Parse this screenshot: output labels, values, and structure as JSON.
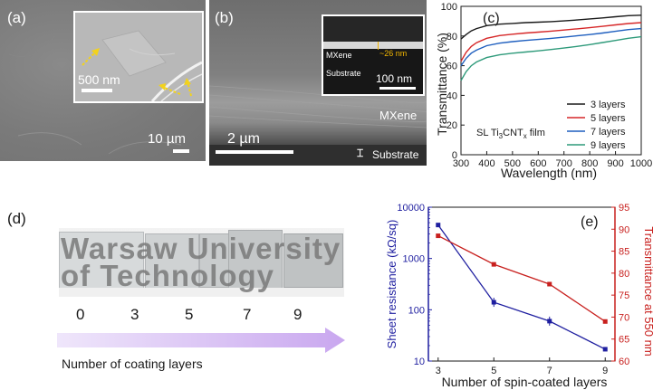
{
  "panel_a": {
    "label": "(a)",
    "inset_scale": "500 nm",
    "main_scale": "10 µm"
  },
  "panel_b": {
    "label": "(b)",
    "inset_layer_top": "MXene",
    "inset_layer_bottom": "Substrate",
    "inset_thickness": "~26 nm",
    "inset_scale": "100 nm",
    "mxene_label": "MXene",
    "substrate_label": "Substrate",
    "main_scale": "2 µm",
    "accent_color": "#f2b600"
  },
  "panel_c": {
    "label": "(c)",
    "annotation": "SL Ti3CNTx film",
    "annotation_parts": {
      "pre": "SL Ti",
      "sub1": "3",
      "mid": "CNT",
      "sub2": "x",
      "post": " film"
    },
    "chart_data": {
      "type": "line",
      "title": "",
      "xlabel": "Wavelength (nm)",
      "ylabel": "Transmittance (%)",
      "xlim": [
        300,
        1000
      ],
      "ylim": [
        0,
        100
      ],
      "xticks": [
        300,
        400,
        500,
        600,
        700,
        800,
        900,
        1000
      ],
      "yticks": [
        0,
        20,
        40,
        60,
        80,
        100
      ],
      "legend_position": "lower-right",
      "x": [
        300,
        320,
        340,
        360,
        400,
        450,
        500,
        550,
        600,
        650,
        700,
        750,
        800,
        850,
        900,
        950,
        1000
      ],
      "series": [
        {
          "name": "3 layers",
          "color": "#1a1a1a",
          "values": [
            78,
            81,
            83.5,
            85,
            87,
            88,
            88.5,
            89,
            89.3,
            89.7,
            90.2,
            90.8,
            91.5,
            92.2,
            93,
            93.7,
            94
          ]
        },
        {
          "name": "5 layers",
          "color": "#d62728",
          "values": [
            63,
            69,
            73,
            75.5,
            78.5,
            80.3,
            81.2,
            82,
            82.6,
            83.3,
            84,
            84.8,
            85.6,
            86.5,
            87.5,
            88.4,
            89
          ]
        },
        {
          "name": "7 layers",
          "color": "#1f5fbf",
          "values": [
            60,
            65,
            68.5,
            70.5,
            73.5,
            75.2,
            76.2,
            77,
            77.7,
            78.4,
            79.2,
            80.1,
            81,
            82,
            83.2,
            84.3,
            85
          ]
        },
        {
          "name": "9 layers",
          "color": "#2e9a7a",
          "values": [
            50,
            56,
            60,
            62.5,
            65.5,
            67.3,
            68.4,
            69.2,
            70,
            70.9,
            71.9,
            73,
            74.2,
            75.6,
            77,
            78.5,
            79.5
          ]
        }
      ]
    }
  },
  "panel_d": {
    "label": "(d)",
    "photo_text_line1": "Warsaw University",
    "photo_text_line2": "of Technology",
    "layer_counts": [
      "0",
      "3",
      "5",
      "7",
      "9"
    ],
    "arrow_caption": "Number of coating layers",
    "arrow_color": "#c9a7ef"
  },
  "panel_e": {
    "label": "(e)",
    "chart_data": {
      "type": "line",
      "title": "",
      "xlabel": "Number of spin-coated layers",
      "x": [
        3,
        5,
        7,
        9
      ],
      "xticks": [
        3,
        5,
        7,
        9
      ],
      "left_axis": {
        "label": "Sheet resistance (kΩ/sq)",
        "scale": "log",
        "ylim": [
          10,
          10000
        ],
        "ticks": [
          "10",
          "100",
          "1000",
          "10000"
        ],
        "color": "#1f1fa0"
      },
      "right_axis": {
        "label": "Transmittance at 550 nm",
        "ylim": [
          60,
          95
        ],
        "ticks": [
          60,
          65,
          70,
          75,
          80,
          85,
          90,
          95
        ],
        "color": "#c8201e"
      },
      "series": [
        {
          "name": "Sheet resistance",
          "axis": "left",
          "color": "#1f1fa0",
          "values": [
            4500,
            140,
            60,
            17
          ]
        },
        {
          "name": "Transmittance at 550 nm",
          "axis": "right",
          "color": "#c8201e",
          "values": [
            88.5,
            82,
            77.5,
            69
          ]
        }
      ]
    }
  }
}
